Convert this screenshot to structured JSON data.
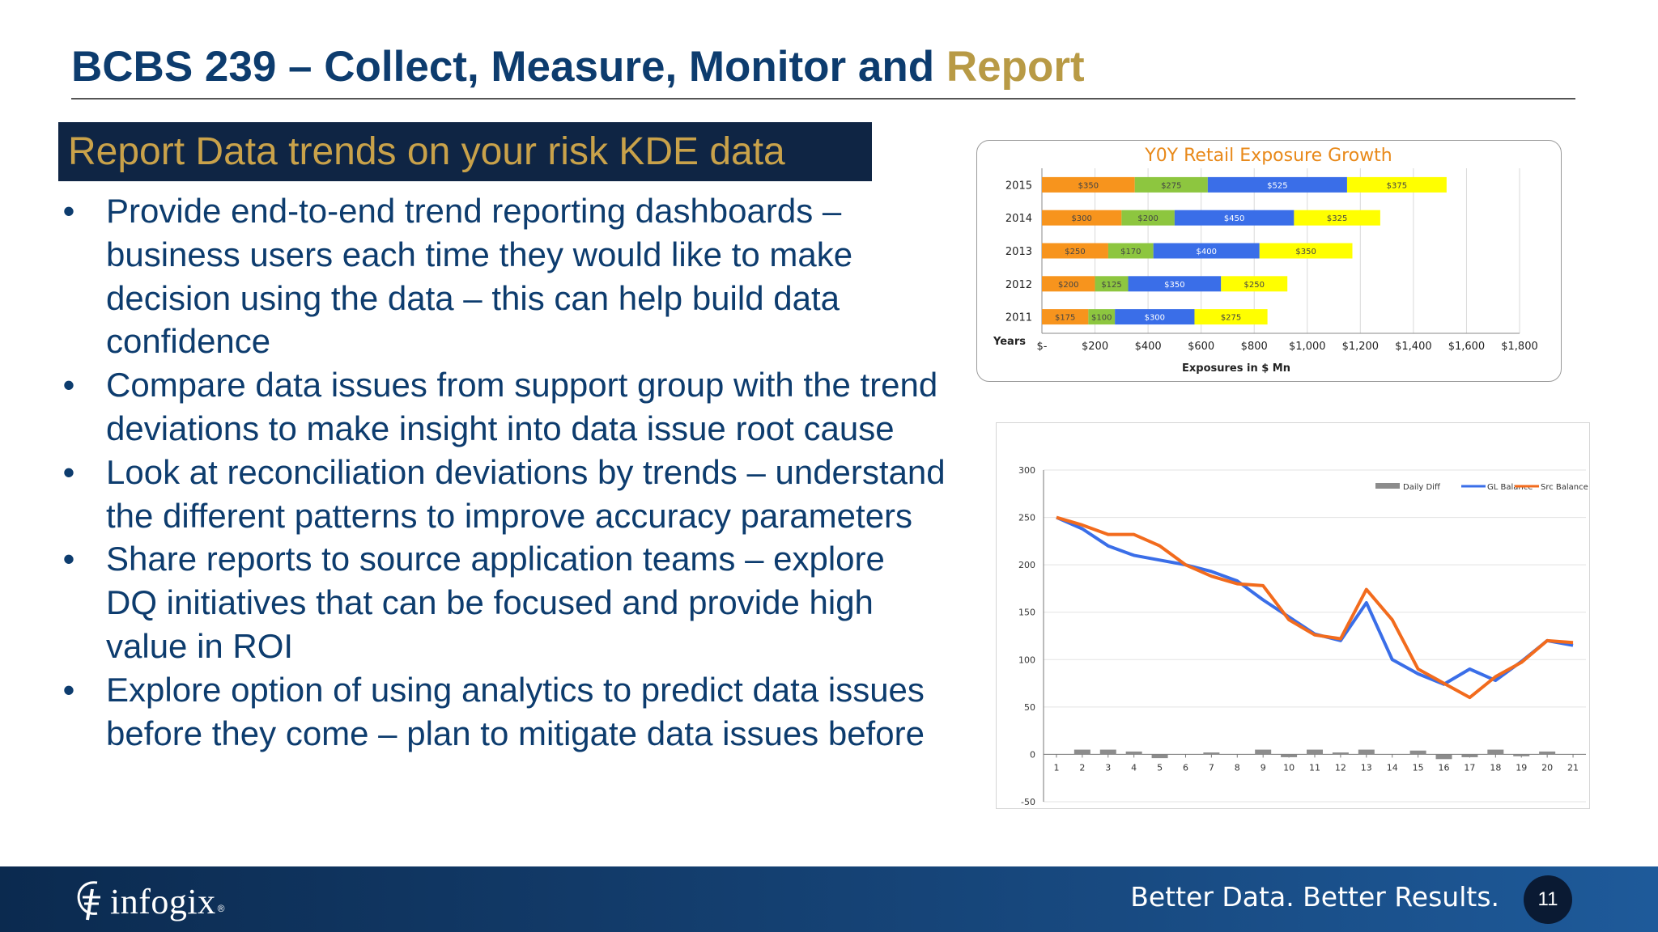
{
  "slide": {
    "title_main": "BCBS 239 – Collect, Measure, Monitor and ",
    "title_accent": "Report",
    "subtitle": "Report Data trends on your risk KDE data",
    "bullets": [
      {
        "text": "Provide end-to-end trend reporting dashboards –\nbusiness users each time they would like to make\ndecision using the data – this can help build data\nconfidence"
      },
      {
        "text": "Compare data issues from support group with the trend\ndeviations to make insight into data issue root cause"
      },
      {
        "text": "Look at reconciliation deviations by trends – understand\nthe different patterns to improve accuracy parameters"
      },
      {
        "text": "Share reports to source application teams – explore\nDQ initiatives that can be focused and provide high\nvalue in ROI"
      },
      {
        "text": "Explore option of using analytics to predict data issues\nbefore they come – plan to mitigate data issues before"
      }
    ],
    "bullet_glyph": "•"
  },
  "footer": {
    "logo_text": "infogix",
    "logo_mark": "®",
    "slogan": "Better Data. Better Results.",
    "page_number": "11"
  },
  "colors": {
    "title": "#0d3c6e",
    "accent": "#b89a45",
    "subtitle_bg": "#0f2544",
    "footer_start": "#0b2a4f",
    "footer_end": "#1e5a9a"
  },
  "chart_data": [
    {
      "type": "bar",
      "orientation": "horizontal",
      "stacked": true,
      "title": "Y0Y Retail Exposure Growth",
      "xlabel": "Exposures in $ Mn",
      "ylabel": "Years",
      "categories": [
        "2011",
        "2012",
        "2013",
        "2014",
        "2015"
      ],
      "series": [
        {
          "values": [
            175,
            200,
            250,
            300,
            350
          ],
          "labels": [
            "$175",
            "$200",
            "$250",
            "$300",
            "$350"
          ],
          "color": "#f7941d"
        },
        {
          "values": [
            100,
            125,
            170,
            200,
            275
          ],
          "labels": [
            "$100",
            "$125",
            "$170",
            "$200",
            "$275"
          ],
          "color": "#8dc63f"
        },
        {
          "values": [
            300,
            350,
            400,
            450,
            525
          ],
          "labels": [
            "$300",
            "$350",
            "$400",
            "$450",
            "$525"
          ],
          "color": "#3a6ee8"
        },
        {
          "values": [
            275,
            250,
            350,
            325,
            375
          ],
          "labels": [
            "$275",
            "$250",
            "$350",
            "$325",
            "$375"
          ],
          "color": "#ffff00"
        }
      ],
      "xlim": [
        0,
        1800
      ],
      "xticks": [
        "$-",
        "$200",
        "$400",
        "$600",
        "$800",
        "$1,000",
        "$1,200",
        "$1,400",
        "$1,600",
        "$1,800"
      ],
      "grid": true
    },
    {
      "type": "line",
      "x": [
        1,
        2,
        3,
        4,
        5,
        6,
        7,
        8,
        9,
        10,
        11,
        12,
        13,
        14,
        15,
        16,
        17,
        18,
        19,
        20,
        21
      ],
      "series": [
        {
          "name": "Daily Diff",
          "type": "bar",
          "color": "#8c8c8c",
          "values": [
            0,
            5,
            5,
            3,
            -4,
            0,
            2,
            0,
            5,
            -3,
            5,
            2,
            5,
            0,
            4,
            -5,
            -3,
            5,
            -2,
            3,
            0
          ]
        },
        {
          "name": "GL Balance",
          "type": "line",
          "color": "#3a6ee8",
          "values": [
            250,
            238,
            220,
            210,
            205,
            200,
            193,
            183,
            163,
            145,
            127,
            120,
            160,
            100,
            85,
            74,
            90,
            78,
            98,
            120,
            115
          ]
        },
        {
          "name": "Src Balance",
          "type": "line",
          "color": "#f26b1d",
          "values": [
            250,
            242,
            232,
            232,
            220,
            200,
            188,
            180,
            178,
            142,
            126,
            122,
            174,
            142,
            90,
            75,
            60,
            82,
            97,
            120,
            118
          ]
        }
      ],
      "ylim": [
        -50,
        300
      ],
      "yticks": [
        -50,
        0,
        50,
        100,
        150,
        200,
        250,
        300
      ],
      "legend": "top-right",
      "grid": true
    }
  ]
}
